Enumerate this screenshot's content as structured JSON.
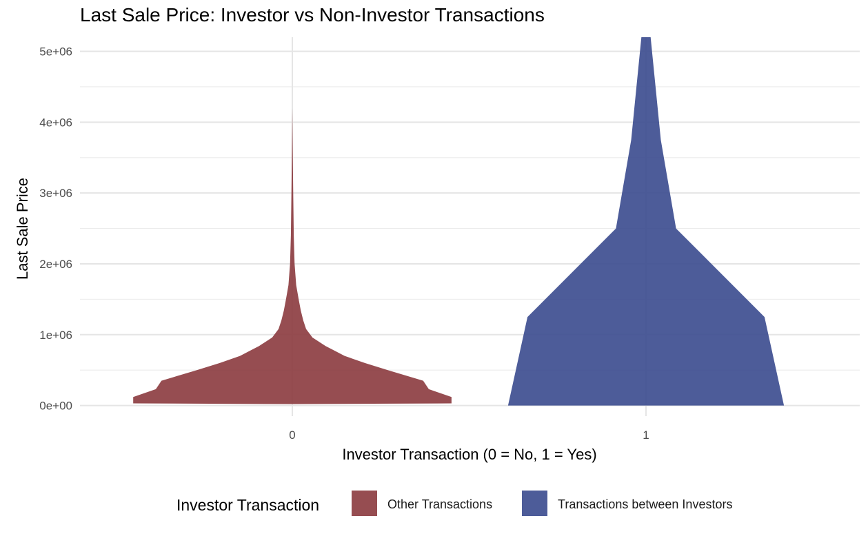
{
  "chart_data": {
    "type": "violin",
    "title": "Last Sale Price: Investor vs Non-Investor Transactions",
    "xlabel": "Investor Transaction (0 = No, 1 = Yes)",
    "ylabel": "Last Sale Price",
    "categories": [
      "0",
      "1"
    ],
    "y_ticks": [
      "0e+00",
      "1e+06",
      "2e+06",
      "3e+06",
      "4e+06",
      "5e+06"
    ],
    "ylim": [
      -150000,
      5200000
    ],
    "grid": true,
    "legend": {
      "title": "Investor Transaction",
      "position": "bottom",
      "entries": [
        "Other Transactions",
        "Transactions between Investors"
      ]
    },
    "series": [
      {
        "name": "Other Transactions",
        "category": "0",
        "color": "#8B3A3E",
        "y_range": [
          20000,
          4200000
        ],
        "profile": [
          [
            20000,
            0.0
          ],
          [
            30000,
            0.45
          ],
          [
            120000,
            0.45
          ],
          [
            230000,
            0.386
          ],
          [
            350000,
            0.37
          ],
          [
            500000,
            0.27
          ],
          [
            600000,
            0.205
          ],
          [
            700000,
            0.148
          ],
          [
            840000,
            0.094
          ],
          [
            960000,
            0.057
          ],
          [
            1080000,
            0.039
          ],
          [
            1200000,
            0.031
          ],
          [
            1340000,
            0.024
          ],
          [
            1500000,
            0.018
          ],
          [
            1700000,
            0.011
          ],
          [
            2000000,
            0.0065
          ],
          [
            2400000,
            0.004
          ],
          [
            3000000,
            0.0025
          ],
          [
            3600000,
            0.0012
          ],
          [
            4200000,
            0.0
          ]
        ]
      },
      {
        "name": "Transactions between Investors",
        "category": "1",
        "color": "#3A4A8E",
        "y_range": [
          0,
          5250000
        ],
        "profile": [
          [
            0,
            0.39
          ],
          [
            1250000,
            0.335
          ],
          [
            2500000,
            0.085
          ],
          [
            3750000,
            0.042
          ],
          [
            5250000,
            0.013
          ]
        ]
      }
    ]
  }
}
